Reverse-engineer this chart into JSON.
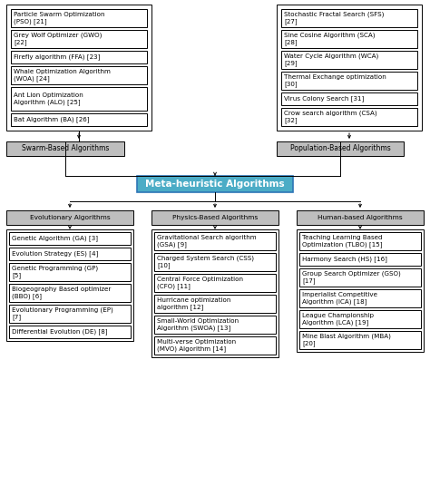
{
  "title": "Meta-heuristic Algorithms",
  "title_color": "#FFFFFF",
  "title_bg": "#4BACC6",
  "category_bg": "#BEBEBE",
  "leaf_bg": "#FFFFFF",
  "leaf_border": "#000000",
  "swarm_algorithms": [
    "Particle Swarm Optimization\n(PSO) [21]",
    "Grey Wolf Optimizer (GWO)\n[22]",
    "Firefly algorithm (FFA) [23]",
    "Whale Optimization Algorithm\n(WOA) [24]",
    "Ant Lion Optimization\nAlgorithm (ALO) [25]",
    "Bat Algorithm (BA) [26]"
  ],
  "population_algorithms": [
    "Stochastic Fractal Search (SFS)\n[27]",
    "Sine Cosine Algorithm (SCA)\n[28]",
    "Water Cycle Algorithm (WCA)\n[29]",
    "Thermal Exchange optimization\n[30]",
    "Virus Colony Search [31]",
    "Crow search algorithm (CSA)\n[32]"
  ],
  "evolutionary_algorithms": [
    "Genetic Algorithm (GA) [3]",
    "Evolution Strategy (ES) [4]",
    "Genetic Programming (GP)\n[5]",
    "Biogeography Based optimizer\n(BBO) [6]",
    "Evolutionary Programming (EP)\n[7]",
    "Differential Evolution (DE) [8]"
  ],
  "physics_algorithms": [
    "Gravitational Search algorithm\n(GSA) [9]",
    "Charged System Search (CSS)\n[10]",
    "Central Force Optimization\n(CFO) [11]",
    "Hurricane optimization\nalgorithm [12]",
    "Small-World Optimization\nAlgorithm (SWOA) [13]",
    "Multi-verse Optimization\n(MVO) Algorithm [14]"
  ],
  "human_algorithms": [
    "Teaching Learning Based\nOptimization (TLBO) [15]",
    "Harmony Search (HS) [16]",
    "Group Search Optimizer (GSO)\n[17]",
    "Imperialist Competitive\nAlgorithm (ICA) [18]",
    "League Championship\nAlgorithm (LCA) [19]",
    "Mine Blast Algorithm (MBA)\n[20]"
  ],
  "swarm_label": "Swarm-Based Algorithms",
  "population_label": "Population-Based Algorithms",
  "evolutionary_label": "Evolutionary Algorithms",
  "physics_label": "Physics-Based Algorithms",
  "human_label": "Human-based Algorithms",
  "figsize": [
    4.74,
    5.47
  ],
  "dpi": 100
}
